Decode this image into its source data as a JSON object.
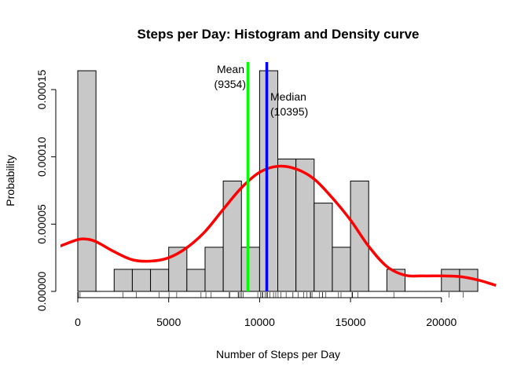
{
  "chart_data": {
    "type": "histogram",
    "title": "Steps per Day: Histogram and Density curve",
    "xlabel": "Number of Steps per Day",
    "ylabel": "Probability",
    "xlim": [
      0,
      23000
    ],
    "ylim": [
      0,
      0.00017
    ],
    "bin_width": 1000,
    "bin_starts": [
      0,
      1000,
      2000,
      3000,
      4000,
      5000,
      6000,
      7000,
      8000,
      9000,
      10000,
      11000,
      12000,
      13000,
      14000,
      15000,
      16000,
      17000,
      18000,
      19000,
      20000,
      21000
    ],
    "density": [
      0.000164,
      0,
      1.64e-05,
      1.64e-05,
      1.64e-05,
      3.28e-05,
      1.64e-05,
      3.28e-05,
      8.2e-05,
      3.28e-05,
      0.000164,
      9.84e-05,
      9.84e-05,
      6.56e-05,
      3.28e-05,
      8.2e-05,
      0,
      1.64e-05,
      0,
      0,
      1.64e-05,
      1.64e-05
    ],
    "bar_color": "#c8c8c8",
    "x_ticks": [
      0,
      5000,
      10000,
      15000,
      20000
    ],
    "x_tick_labels": [
      "0",
      "5000",
      "10000",
      "15000",
      "20000"
    ],
    "y_ticks": [
      0,
      5e-05,
      0.0001,
      0.00015
    ],
    "y_tick_labels": [
      "0.00000",
      "0.00005",
      "0.00010",
      "0.00015"
    ],
    "density_curve": {
      "color": "#ff0000",
      "x": [
        -1000,
        0,
        500,
        1000,
        2000,
        3000,
        4000,
        5000,
        6000,
        7000,
        8000,
        9000,
        10000,
        11000,
        12000,
        13000,
        14000,
        15000,
        16000,
        17000,
        18000,
        19000,
        20000,
        21000,
        22000,
        23000
      ],
      "y": [
        3.35e-05,
        3.85e-05,
        3.88e-05,
        3.7e-05,
        2.95e-05,
        2.35e-05,
        2.25e-05,
        2.5e-05,
        3.25e-05,
        4.45e-05,
        6.1e-05,
        7.7e-05,
        8.85e-05,
        9.3e-05,
        9.1e-05,
        8.35e-05,
        6.95e-05,
        5.3e-05,
        3.35e-05,
        1.85e-05,
        1.2e-05,
        1.15e-05,
        1.15e-05,
        1.1e-05,
        8.5e-06,
        4.5e-06
      ]
    },
    "mean": {
      "label": "Mean",
      "value_label": "(9354)",
      "value": 9354,
      "color": "#00ff00"
    },
    "median": {
      "label": "Median",
      "value_label": "(10395)",
      "value": 10395,
      "color": "#0000ff"
    },
    "rug": [
      0,
      0,
      0,
      0,
      0,
      0,
      0,
      0,
      41,
      126,
      2492,
      3219,
      4472,
      5018,
      5441,
      6778,
      7047,
      7336,
      8334,
      8355,
      8821,
      8841,
      8918,
      9000,
      9100,
      9900,
      10056,
      10139,
      10183,
      10304,
      10395,
      10439,
      10571,
      10765,
      10890,
      11015,
      11162,
      11458,
      11829,
      11834,
      12116,
      12426,
      12608,
      12787,
      12811,
      12883,
      13294,
      13452,
      13460,
      13646,
      14339,
      14478,
      15084,
      15098,
      15110,
      15414,
      17382,
      20427,
      21194
    ]
  }
}
